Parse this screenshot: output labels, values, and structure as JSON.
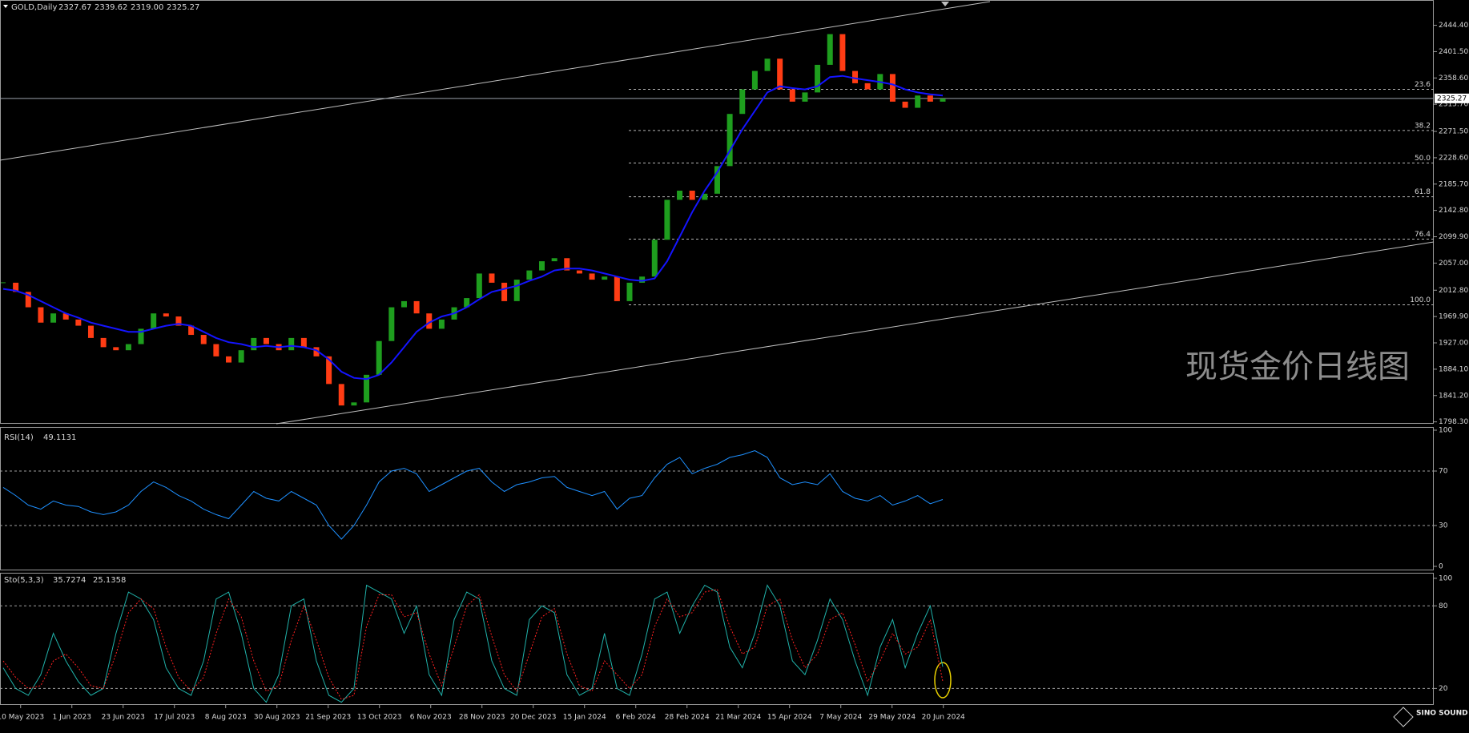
{
  "header": {
    "symbol": "GOLD,Daily",
    "ohlc": [
      2327.67,
      2339.62,
      {
        "value": 2319,
        "label": "2319.00"
      },
      2325.27
    ]
  },
  "watermark": "现货金价日线图",
  "logo": "SINO SOUND",
  "dates": [
    "10 May 2023",
    "1 Jun 2023",
    "23 Jun 2023",
    "17 Jul 2023",
    "8 Aug 2023",
    "30 Aug 2023",
    "21 Sep 2023",
    "13 Oct 2023",
    "6 Nov 2023",
    "28 Nov 2023",
    "20 Dec 2023",
    "15 Jan 2024",
    "6 Feb 2024",
    "28 Feb 2024",
    "21 Mar 2024",
    "15 Apr 2024",
    "7 May 2024",
    "29 May 2024",
    "20 Jun 2024"
  ],
  "chart_data": [
    {
      "type": "candlestick",
      "close": [
        2025,
        2010,
        1985,
        1960,
        1975,
        1965,
        1955,
        1935,
        1920,
        1915,
        1925,
        1950,
        1975,
        1970,
        1955,
        1940,
        1925,
        1905,
        1895,
        1915,
        1935,
        1925,
        1915,
        1935,
        1920,
        1905,
        1860,
        1825,
        1830,
        1875,
        1930,
        1985,
        1995,
        1975,
        1950,
        1965,
        1985,
        2000,
        2040,
        2025,
        1995,
        2030,
        2045,
        2060,
        2065,
        2045,
        2040,
        2030,
        2035,
        1995,
        2025,
        2035,
        2095,
        2160,
        2175,
        2160,
        2170,
        2215,
        2300,
        2340,
        2370,
        2390,
        2340,
        2320,
        2335,
        2380,
        2430,
        2370,
        2350,
        2340,
        2365,
        2320,
        2310,
        2330,
        2320,
        2325
      ],
      "ma": [
        2015,
        2012,
        2005,
        1995,
        1985,
        1975,
        1968,
        1960,
        1955,
        1950,
        1945,
        1945,
        1950,
        1955,
        1958,
        1955,
        1945,
        1935,
        1928,
        1925,
        1920,
        1922,
        1920,
        1922,
        1920,
        1915,
        1900,
        1880,
        1870,
        1868,
        1875,
        1895,
        1920,
        1945,
        1960,
        1970,
        1975,
        1985,
        1998,
        2010,
        2015,
        2020,
        2028,
        2035,
        2045,
        2048,
        2048,
        2045,
        2040,
        2035,
        2030,
        2028,
        2032,
        2060,
        2100,
        2140,
        2175,
        2205,
        2240,
        2275,
        2305,
        2335,
        2345,
        2342,
        2340,
        2345,
        2360,
        2362,
        2358,
        2355,
        2352,
        2348,
        2340,
        2335,
        2332,
        2330
      ],
      "ma_color": "#1414ff",
      "up_color": "#1e9e1e",
      "down_color": "#ff3c14",
      "ylim": [
        1795.2,
        2485.6
      ],
      "yticks": [
        {
          "value": 1798.3,
          "label": "1798.30"
        },
        {
          "value": 1841.2,
          "label": "1841.20"
        },
        {
          "value": 1884.1,
          "label": "1884.10"
        },
        {
          "value": 1927,
          "label": "1927.00"
        },
        {
          "value": 1969.9,
          "label": "1969.90"
        },
        {
          "value": 2012.8,
          "label": "2012.80"
        },
        {
          "value": 2057,
          "label": "2057.00"
        },
        {
          "value": 2099.9,
          "label": "2099.90"
        },
        {
          "value": 2142.8,
          "label": "2142.80"
        },
        {
          "value": 2185.7,
          "label": "2185.70"
        },
        {
          "value": 2228.6,
          "label": "2228.60"
        },
        {
          "value": 2271.5,
          "label": "2271.50"
        },
        {
          "value": 2315.7,
          "label": "2315.70"
        },
        {
          "value": 2358.6,
          "label": "2358.60"
        },
        {
          "value": 2401.5,
          "label": "2401.50"
        },
        {
          "value": 2444.4,
          "label": "2444.40"
        }
      ],
      "current_price": 2325.27,
      "fibonacci": [
        {
          "level": 23.6,
          "price": 2340
        },
        {
          "level": 38.2,
          "price": 2273
        },
        {
          "level": {
            "value": 50,
            "label": "50.0"
          },
          "price": 2220
        },
        {
          "level": 61.8,
          "price": 2165
        },
        {
          "level": 76.4,
          "price": 2096
        },
        {
          "level": {
            "value": 100,
            "label": "100.0"
          },
          "price": 1989
        }
      ]
    },
    {
      "type": "line",
      "title": "RSI(14)",
      "last": 49.1131,
      "series": [
        {
          "color": "#1e90ff",
          "values": [
            58,
            52,
            45,
            42,
            48,
            45,
            44,
            40,
            38,
            40,
            45,
            55,
            62,
            58,
            52,
            48,
            42,
            38,
            35,
            45,
            55,
            50,
            48,
            55,
            50,
            45,
            30,
            20,
            30,
            45,
            62,
            70,
            72,
            68,
            55,
            60,
            65,
            70,
            72,
            62,
            55,
            60,
            62,
            65,
            66,
            58,
            55,
            52,
            55,
            42,
            50,
            52,
            65,
            75,
            80,
            68,
            72,
            75,
            80,
            82,
            85,
            80,
            65,
            60,
            62,
            60,
            68,
            55,
            50,
            48,
            52,
            45,
            48,
            52,
            46,
            49.1131
          ]
        }
      ],
      "ylim": [
        0,
        100
      ],
      "yticks": [
        0,
        30,
        70,
        100
      ]
    },
    {
      "type": "line",
      "title": "Sto(5,3,3)",
      "last": [
        35.7274,
        25.1358
      ],
      "series": [
        {
          "color": "#20b2aa",
          "values": [
            35,
            20,
            15,
            30,
            60,
            40,
            25,
            15,
            20,
            60,
            90,
            85,
            70,
            35,
            20,
            15,
            40,
            85,
            90,
            60,
            20,
            10,
            30,
            80,
            85,
            40,
            15,
            10,
            20,
            95,
            90,
            85,
            60,
            80,
            30,
            15,
            70,
            90,
            85,
            40,
            20,
            15,
            70,
            80,
            75,
            30,
            15,
            20,
            60,
            20,
            15,
            45,
            85,
            90,
            60,
            80,
            95,
            90,
            50,
            35,
            60,
            95,
            80,
            40,
            30,
            55,
            85,
            70,
            40,
            15,
            50,
            70,
            35,
            60,
            80,
            35.7274
          ]
        },
        {
          "color": "#ff2020",
          "dashed": true,
          "values": [
            40,
            28,
            20,
            22,
            40,
            45,
            35,
            22,
            20,
            45,
            75,
            85,
            78,
            50,
            28,
            18,
            28,
            60,
            85,
            72,
            40,
            18,
            22,
            55,
            80,
            55,
            28,
            12,
            15,
            65,
            88,
            88,
            72,
            75,
            45,
            22,
            50,
            80,
            88,
            58,
            30,
            18,
            45,
            72,
            78,
            45,
            22,
            18,
            40,
            30,
            20,
            30,
            65,
            85,
            72,
            75,
            90,
            92,
            65,
            45,
            50,
            80,
            85,
            55,
            35,
            45,
            70,
            75,
            52,
            25,
            40,
            60,
            45,
            50,
            70,
            25.1358
          ]
        }
      ],
      "ylim": [
        8,
        104
      ],
      "yticks": [
        20,
        80,
        100
      ]
    }
  ]
}
